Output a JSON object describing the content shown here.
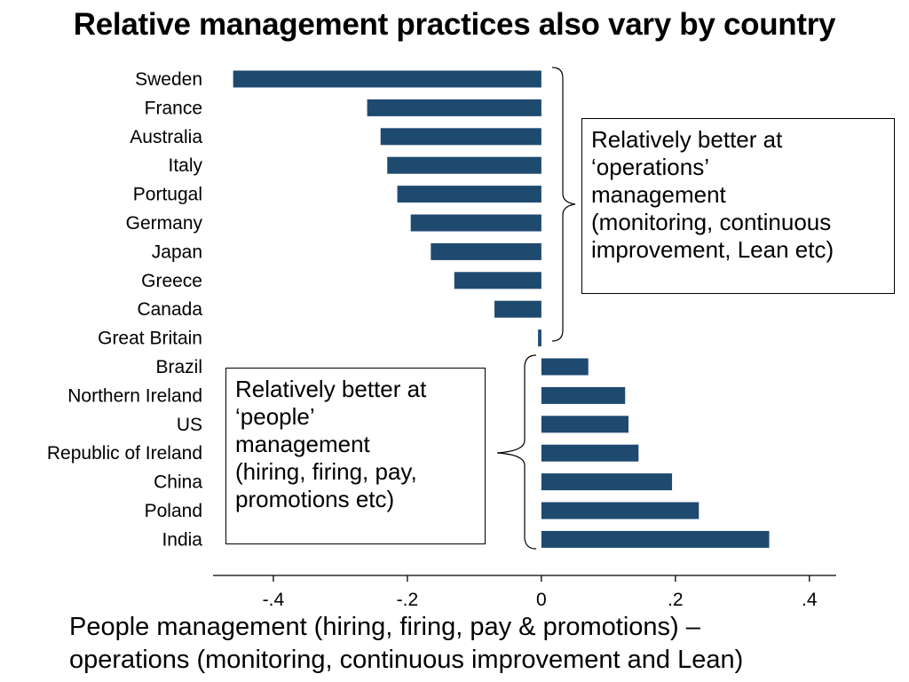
{
  "chart_data": {
    "type": "bar",
    "orientation": "horizontal",
    "title": "Relative management practices also vary by country",
    "categories": [
      "Sweden",
      "France",
      "Australia",
      "Italy",
      "Portugal",
      "Germany",
      "Japan",
      "Greece",
      "Canada",
      "Great Britain",
      "Brazil",
      "Northern Ireland",
      "US",
      "Republic of Ireland",
      "China",
      "Poland",
      "India"
    ],
    "values": [
      -0.46,
      -0.26,
      -0.24,
      -0.23,
      -0.215,
      -0.195,
      -0.165,
      -0.13,
      -0.07,
      -0.005,
      0.07,
      0.125,
      0.13,
      0.145,
      0.195,
      0.235,
      0.34
    ],
    "xlim": [
      -0.49,
      0.44
    ],
    "xticks": [
      "-.4",
      "-.2",
      "0",
      ".2",
      ".4"
    ],
    "xtick_values": [
      -0.4,
      -0.2,
      0,
      0.2,
      0.4
    ],
    "xlabel_lines": [
      "People management (hiring, firing, pay & promotions) –",
      "operations (monitoring, continuous improvement and Lean)"
    ],
    "bar_color": "#1f4a70",
    "grid": false,
    "annotations": [
      {
        "id": "operations",
        "lines": [
          "Relatively better at",
          "‘operations’",
          "management",
          "(monitoring, continuous",
          "improvement, Lean etc)"
        ]
      },
      {
        "id": "people",
        "lines": [
          "Relatively better at",
          "‘people’",
          "management",
          "(hiring, firing, pay,",
          "promotions etc)"
        ]
      }
    ]
  }
}
